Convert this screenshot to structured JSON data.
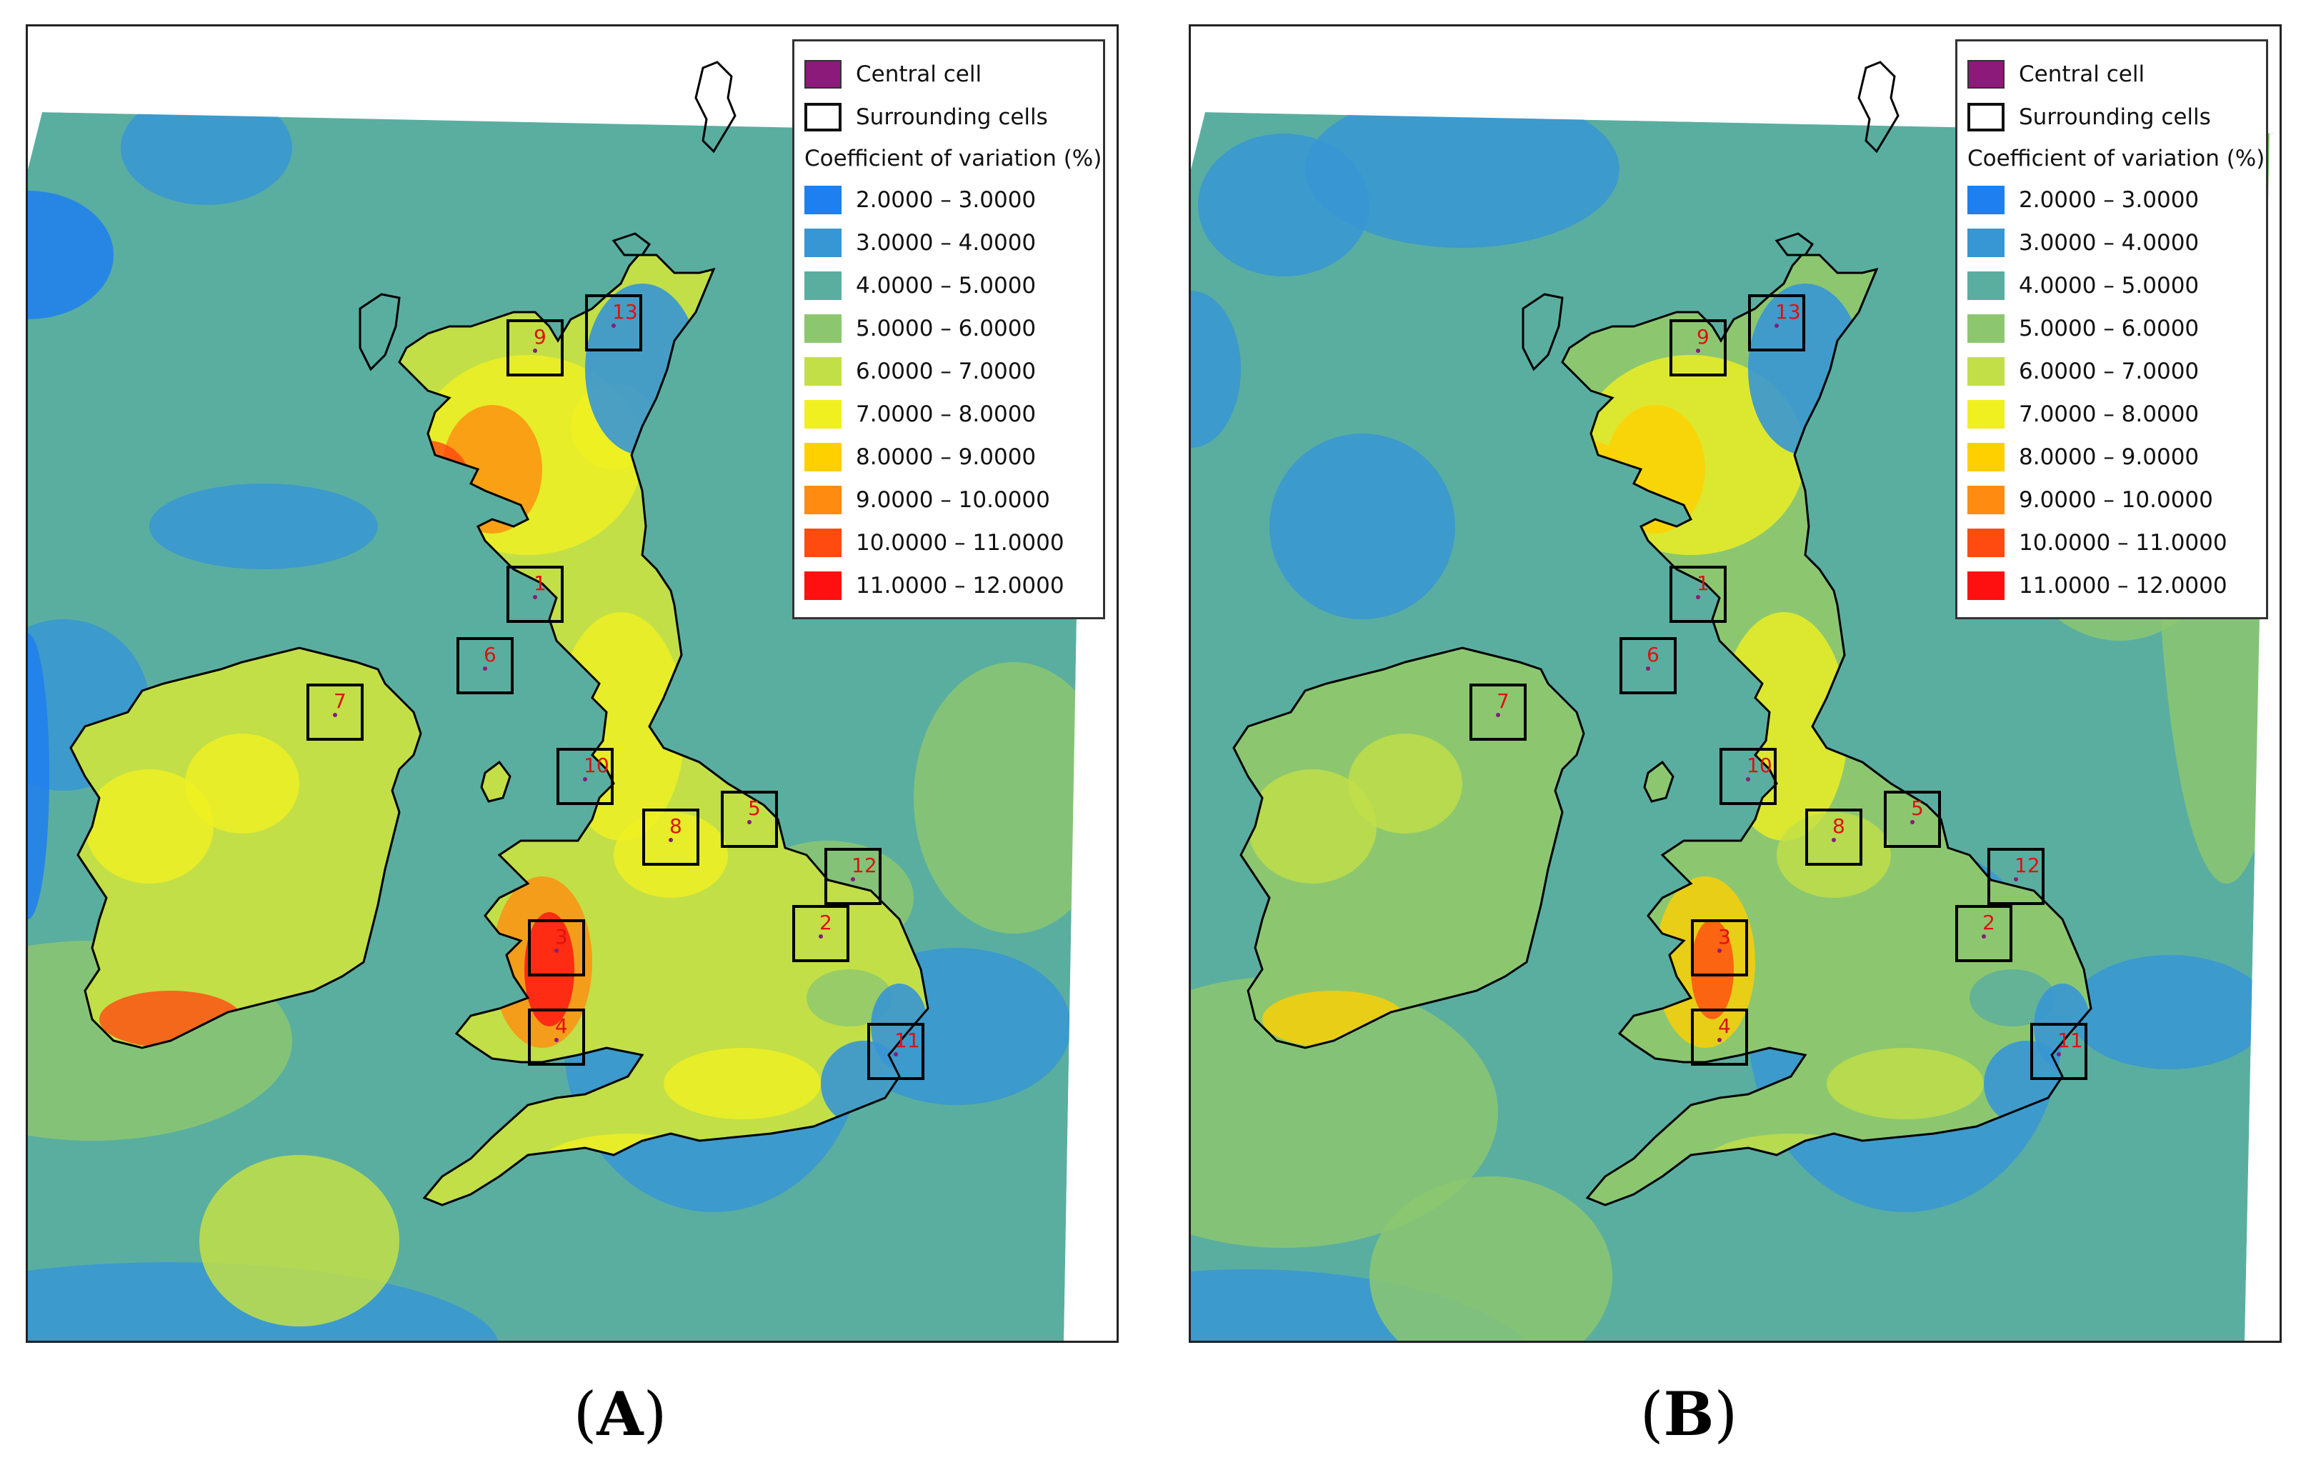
{
  "panels": [
    {
      "id": "A",
      "label_open": "(",
      "label_letter": "A",
      "label_close": ")"
    },
    {
      "id": "B",
      "label_open": "(",
      "label_letter": "B",
      "label_close": ")"
    }
  ],
  "legend": {
    "central_cell": {
      "label": "Central cell",
      "color": "#8b1a7a"
    },
    "surrounding_cells": {
      "label": "Surrounding cells"
    },
    "title": "Coefficient of variation (%)",
    "classes": [
      {
        "label": "2.0000 – 3.0000",
        "color": "#1e7ff0"
      },
      {
        "label": "3.0000 – 4.0000",
        "color": "#3796d4"
      },
      {
        "label": "4.0000 – 5.0000",
        "color": "#5aaea0"
      },
      {
        "label": "5.0000 – 6.0000",
        "color": "#8cc770"
      },
      {
        "label": "6.0000 – 7.0000",
        "color": "#c2df47"
      },
      {
        "label": "7.0000 – 8.0000",
        "color": "#f0f020"
      },
      {
        "label": "8.0000 – 9.0000",
        "color": "#ffd000"
      },
      {
        "label": "9.0000 – 10.0000",
        "color": "#ff8c10"
      },
      {
        "label": "10.0000 – 11.0000",
        "color": "#ff4a10"
      },
      {
        "label": "11.0000 – 12.0000",
        "color": "#ff1010"
      }
    ]
  },
  "cells": [
    "1",
    "2",
    "3",
    "4",
    "5",
    "6",
    "7",
    "8",
    "9",
    "10",
    "11",
    "12",
    "13"
  ],
  "colors": {
    "sea": "#5aaea0",
    "coast": "#000000",
    "cell_label": "#e01010"
  }
}
